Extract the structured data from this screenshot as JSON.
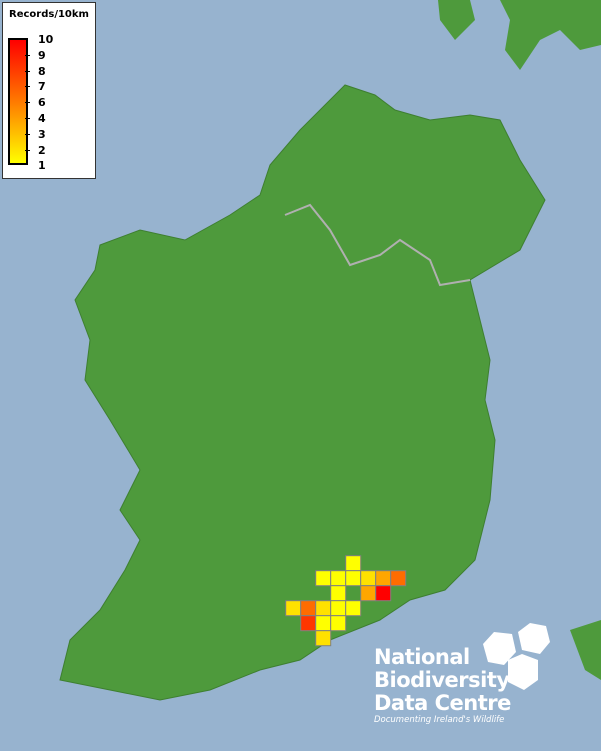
{
  "legend": {
    "title": "Records/10km",
    "ticks": [
      "10",
      "9",
      "8",
      "7",
      "6",
      "4",
      "3",
      "2",
      "1"
    ],
    "color_low": "#ffff00",
    "color_mid": "#ff7a00",
    "color_high": "#ff0000"
  },
  "colors": {
    "sea": "#97b3cf",
    "land": "#4e9a3c",
    "grid_border": "#808080"
  },
  "records_grid": [
    {
      "col": 4,
      "row": 0,
      "records": 1
    },
    {
      "col": 2,
      "row": 1,
      "records": 1
    },
    {
      "col": 3,
      "row": 1,
      "records": 1
    },
    {
      "col": 4,
      "row": 1,
      "records": 1
    },
    {
      "col": 5,
      "row": 1,
      "records": 2
    },
    {
      "col": 6,
      "row": 1,
      "records": 4
    },
    {
      "col": 7,
      "row": 1,
      "records": 6
    },
    {
      "col": 3,
      "row": 2,
      "records": 1
    },
    {
      "col": 5,
      "row": 2,
      "records": 4
    },
    {
      "col": 6,
      "row": 2,
      "records": 10
    },
    {
      "col": 0,
      "row": 3,
      "records": 2
    },
    {
      "col": 1,
      "row": 3,
      "records": 6
    },
    {
      "col": 2,
      "row": 3,
      "records": 2
    },
    {
      "col": 3,
      "row": 3,
      "records": 1
    },
    {
      "col": 4,
      "row": 3,
      "records": 1
    },
    {
      "col": 1,
      "row": 4,
      "records": 8
    },
    {
      "col": 2,
      "row": 4,
      "records": 1
    },
    {
      "col": 3,
      "row": 4,
      "records": 1
    },
    {
      "col": 2,
      "row": 5,
      "records": 2
    }
  ],
  "logo": {
    "line1": "National",
    "line2": "Biodiversity",
    "line3": "Data Centre",
    "tagline": "Documenting Ireland's Wildlife"
  }
}
